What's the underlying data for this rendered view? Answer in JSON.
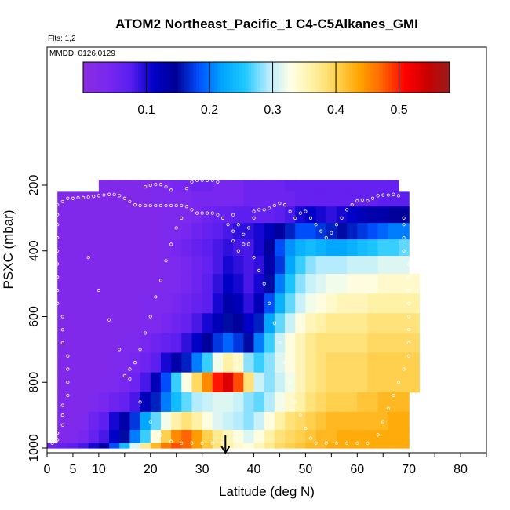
{
  "chart_data": {
    "type": "heatmap",
    "title": "ATOM2 Northeast_Pacific_1 C4-C5Alkanes_GMI",
    "annotations": [
      "Flts: 1,2",
      "MMDD: 0126,0129"
    ],
    "xlabel": "Latitude (deg N)",
    "ylabel": "PSXC (mbar)",
    "xlim": [
      0,
      85
    ],
    "ylim": [
      1000,
      100
    ],
    "y_reversed": true,
    "x_ticks": [
      0,
      5,
      10,
      15,
      20,
      25,
      30,
      35,
      40,
      45,
      50,
      55,
      60,
      65,
      70,
      75,
      80,
      85
    ],
    "x_tick_labels": [
      "0",
      "5",
      "10",
      "",
      "20",
      "",
      "30",
      "",
      "40",
      "",
      "50",
      "",
      "60",
      "",
      "70",
      "",
      "80",
      ""
    ],
    "y_ticks": [
      200,
      400,
      600,
      800,
      1000
    ],
    "y_tick_labels": [
      "200",
      "400",
      "600",
      "800",
      "1000"
    ],
    "colorbar": {
      "range": [
        0,
        0.58
      ],
      "ticks": [
        0.1,
        0.2,
        0.3,
        0.4,
        0.5
      ],
      "tick_labels": [
        "0.1",
        "0.2",
        "0.3",
        "0.4",
        "0.5"
      ],
      "colors": [
        "#8a2be2",
        "#7a28f0",
        "#5a1ef0",
        "#0000c8",
        "#000096",
        "#0050ff",
        "#00a5ff",
        "#1ec8ff",
        "#b4ebff",
        "#ffffe6",
        "#fff0a0",
        "#ffd250",
        "#ffa500",
        "#ff6400",
        "#ff0000",
        "#c80000",
        "#961e1e"
      ]
    },
    "x_grid": [
      1,
      3,
      5,
      7,
      9,
      11,
      13,
      15,
      17,
      19,
      21,
      23,
      25,
      27,
      29,
      31,
      33,
      35,
      37,
      39,
      41,
      43,
      45,
      47,
      49,
      51,
      53,
      55,
      57,
      59,
      61,
      63,
      65,
      67,
      69,
      71
    ],
    "levels": [
      {
        "p": 200,
        "v": [
          null,
          null,
          null,
          null,
          null,
          0.02,
          0.02,
          0.02,
          0.02,
          0.02,
          0.03,
          0.03,
          0.04,
          0.04,
          0.05,
          0.05,
          0.04,
          0.04,
          0.04,
          0.05,
          0.05,
          0.05,
          0.05,
          0.06,
          0.06,
          0.06,
          0.06,
          0.06,
          0.06,
          0.06,
          0.06,
          0.06,
          0.06,
          0.06,
          null,
          null
        ]
      },
      {
        "p": 240,
        "v": [
          null,
          0.02,
          0.02,
          0.02,
          0.02,
          0.02,
          0.02,
          0.02,
          0.02,
          0.02,
          0.03,
          0.03,
          0.03,
          0.03,
          0.04,
          0.04,
          0.04,
          0.04,
          0.04,
          0.05,
          0.05,
          0.05,
          0.05,
          0.05,
          0.06,
          0.06,
          0.06,
          0.06,
          0.06,
          0.06,
          0.06,
          0.06,
          0.07,
          0.07,
          0.07,
          null
        ]
      },
      {
        "p": 290,
        "v": [
          null,
          0.02,
          0.02,
          0.02,
          0.02,
          0.02,
          0.02,
          0.02,
          0.02,
          0.02,
          0.02,
          0.03,
          0.03,
          0.03,
          0.04,
          0.05,
          0.06,
          0.06,
          0.07,
          0.07,
          0.06,
          0.06,
          0.07,
          0.08,
          0.1,
          0.11,
          0.1,
          0.09,
          0.1,
          0.11,
          0.12,
          0.13,
          0.13,
          0.14,
          0.14,
          null
        ]
      },
      {
        "p": 340,
        "v": [
          null,
          0.02,
          0.02,
          0.02,
          0.02,
          0.02,
          0.02,
          0.02,
          0.02,
          0.02,
          0.02,
          0.03,
          0.03,
          0.04,
          0.05,
          0.06,
          0.07,
          0.08,
          0.09,
          0.09,
          0.1,
          0.12,
          0.14,
          0.16,
          0.18,
          0.18,
          0.17,
          0.16,
          0.15,
          0.16,
          0.17,
          0.18,
          0.19,
          0.2,
          0.2,
          null
        ]
      },
      {
        "p": 390,
        "v": [
          null,
          0.02,
          0.02,
          0.02,
          0.02,
          0.02,
          0.02,
          0.02,
          0.02,
          0.02,
          0.02,
          0.03,
          0.04,
          0.05,
          0.06,
          0.07,
          0.08,
          0.09,
          0.08,
          0.08,
          0.1,
          0.14,
          0.18,
          0.21,
          0.23,
          0.24,
          0.23,
          0.22,
          0.22,
          0.23,
          0.24,
          0.25,
          0.26,
          0.26,
          0.27,
          null
        ]
      },
      {
        "p": 440,
        "v": [
          null,
          0.02,
          0.02,
          0.02,
          0.02,
          0.02,
          0.02,
          0.02,
          0.02,
          0.02,
          0.02,
          0.03,
          0.03,
          0.04,
          0.05,
          0.06,
          0.08,
          0.1,
          0.09,
          0.08,
          0.09,
          0.13,
          0.17,
          0.22,
          0.26,
          0.28,
          0.29,
          0.29,
          0.29,
          0.3,
          0.3,
          0.3,
          0.31,
          0.31,
          0.31,
          null
        ]
      },
      {
        "p": 500,
        "v": [
          null,
          0.02,
          0.02,
          0.02,
          0.02,
          0.02,
          0.02,
          0.02,
          0.02,
          0.02,
          0.02,
          0.03,
          0.03,
          0.04,
          0.05,
          0.07,
          0.09,
          0.11,
          0.1,
          0.08,
          0.1,
          0.15,
          0.2,
          0.25,
          0.28,
          0.3,
          0.31,
          0.32,
          0.32,
          0.33,
          0.33,
          0.33,
          0.34,
          0.34,
          0.34,
          0.34
        ]
      },
      {
        "p": 560,
        "v": [
          null,
          0.02,
          0.02,
          0.02,
          0.02,
          0.02,
          0.02,
          0.02,
          0.02,
          0.03,
          0.03,
          0.03,
          0.04,
          0.05,
          0.06,
          0.07,
          0.1,
          0.13,
          0.12,
          0.09,
          0.12,
          0.18,
          0.23,
          0.27,
          0.3,
          0.32,
          0.33,
          0.34,
          0.35,
          0.35,
          0.35,
          0.36,
          0.36,
          0.36,
          0.36,
          0.36
        ]
      },
      {
        "p": 620,
        "v": [
          null,
          0.02,
          0.02,
          0.02,
          0.02,
          0.02,
          0.02,
          0.02,
          0.02,
          0.03,
          0.03,
          0.04,
          0.05,
          0.06,
          0.08,
          0.1,
          0.12,
          0.15,
          0.14,
          0.11,
          0.16,
          0.22,
          0.27,
          0.3,
          0.33,
          0.35,
          0.36,
          0.37,
          0.37,
          0.37,
          0.37,
          0.38,
          0.38,
          0.38,
          0.38,
          0.38
        ]
      },
      {
        "p": 680,
        "v": [
          null,
          0.02,
          0.02,
          0.02,
          0.02,
          0.02,
          0.02,
          0.03,
          0.03,
          0.04,
          0.05,
          0.06,
          0.07,
          0.09,
          0.11,
          0.14,
          0.17,
          0.19,
          0.17,
          0.15,
          0.2,
          0.26,
          0.3,
          0.33,
          0.35,
          0.37,
          0.38,
          0.38,
          0.38,
          0.38,
          0.38,
          0.39,
          0.39,
          0.39,
          0.39,
          0.39
        ]
      },
      {
        "p": 740,
        "v": [
          null,
          0.02,
          0.02,
          0.02,
          0.02,
          0.02,
          0.03,
          0.03,
          0.04,
          0.05,
          0.07,
          0.1,
          0.13,
          0.16,
          0.2,
          0.26,
          0.32,
          0.36,
          0.34,
          0.28,
          0.26,
          0.28,
          0.31,
          0.33,
          0.35,
          0.37,
          0.38,
          0.39,
          0.39,
          0.39,
          0.39,
          0.4,
          0.4,
          0.4,
          0.4,
          0.4
        ]
      },
      {
        "p": 800,
        "v": [
          null,
          0.02,
          0.02,
          0.02,
          0.02,
          0.03,
          0.03,
          0.04,
          0.05,
          0.08,
          0.12,
          0.18,
          0.26,
          0.33,
          0.39,
          0.45,
          0.5,
          0.53,
          0.48,
          0.38,
          0.3,
          0.28,
          0.3,
          0.32,
          0.35,
          0.37,
          0.38,
          0.39,
          0.39,
          0.39,
          0.39,
          0.4,
          0.4,
          0.4,
          0.4,
          0.4
        ]
      },
      {
        "p": 860,
        "v": [
          null,
          0.02,
          0.02,
          0.02,
          0.03,
          0.04,
          0.05,
          0.06,
          0.08,
          0.12,
          0.16,
          0.2,
          0.24,
          0.27,
          0.29,
          0.3,
          0.31,
          0.31,
          0.3,
          0.28,
          0.27,
          0.29,
          0.32,
          0.34,
          0.36,
          0.38,
          0.39,
          0.4,
          0.4,
          0.4,
          0.41,
          0.41,
          0.42,
          0.42,
          0.42,
          null
        ]
      },
      {
        "p": 920,
        "v": [
          null,
          0.02,
          0.02,
          0.03,
          0.05,
          0.07,
          0.1,
          0.13,
          0.17,
          0.22,
          0.27,
          0.32,
          0.36,
          0.38,
          0.36,
          0.33,
          0.31,
          0.3,
          0.29,
          0.28,
          0.3,
          0.33,
          0.36,
          0.38,
          0.39,
          0.4,
          0.41,
          0.42,
          0.42,
          0.42,
          0.42,
          0.42,
          0.42,
          0.43,
          0.43,
          null
        ]
      },
      {
        "p": 970,
        "v": [
          null,
          0.02,
          0.03,
          0.04,
          0.06,
          0.08,
          0.11,
          0.15,
          0.2,
          0.26,
          0.33,
          0.4,
          0.45,
          0.47,
          0.44,
          0.4,
          0.37,
          0.35,
          0.33,
          0.31,
          0.33,
          0.36,
          0.38,
          0.39,
          0.4,
          0.41,
          0.42,
          0.42,
          0.43,
          0.43,
          0.43,
          0.43,
          0.43,
          0.43,
          0.43,
          null
        ]
      },
      {
        "p": 1000,
        "v": [
          0.05,
          0.06,
          0.07,
          0.08,
          0.1,
          0.13,
          0.18,
          0.24,
          0.31,
          0.37,
          0.42,
          0.46,
          0.48,
          0.47,
          0.44,
          0.41,
          0.38,
          0.36,
          0.34,
          0.33,
          0.35,
          0.37,
          0.39,
          0.4,
          0.41,
          0.42,
          0.42,
          0.43,
          0.43,
          0.43,
          0.43,
          0.43,
          0.43,
          0.43,
          0.43,
          null
        ]
      }
    ],
    "flight_track_points": [
      [
        1,
        985
      ],
      [
        2,
        975
      ],
      [
        2,
        955
      ],
      [
        3,
        930
      ],
      [
        3,
        900
      ],
      [
        3,
        870
      ],
      [
        4,
        840
      ],
      [
        4,
        800
      ],
      [
        4,
        760
      ],
      [
        4,
        720
      ],
      [
        3,
        680
      ],
      [
        3,
        640
      ],
      [
        3,
        600
      ],
      [
        2,
        560
      ],
      [
        2,
        520
      ],
      [
        2,
        480
      ],
      [
        2,
        440
      ],
      [
        2,
        400
      ],
      [
        2,
        360
      ],
      [
        2,
        320
      ],
      [
        2,
        290
      ],
      [
        2,
        260
      ],
      [
        3,
        250
      ],
      [
        4,
        240
      ],
      [
        5,
        240
      ],
      [
        6,
        238
      ],
      [
        7,
        238
      ],
      [
        8,
        236
      ],
      [
        9,
        234
      ],
      [
        10,
        232
      ],
      [
        11,
        230
      ],
      [
        12,
        228
      ],
      [
        13,
        228
      ],
      [
        14,
        232
      ],
      [
        15,
        240
      ],
      [
        16,
        250
      ],
      [
        17,
        260
      ],
      [
        18,
        262
      ],
      [
        19,
        262
      ],
      [
        20,
        262
      ],
      [
        21,
        262
      ],
      [
        22,
        262
      ],
      [
        23,
        262
      ],
      [
        24,
        262
      ],
      [
        25,
        262
      ],
      [
        26,
        262
      ],
      [
        27,
        265
      ],
      [
        28,
        275
      ],
      [
        29,
        285
      ],
      [
        30,
        285
      ],
      [
        31,
        285
      ],
      [
        32,
        285
      ],
      [
        33,
        290
      ],
      [
        34,
        300
      ],
      [
        35,
        320
      ],
      [
        36,
        340
      ],
      [
        36,
        370
      ],
      [
        37,
        400
      ],
      [
        38,
        380
      ],
      [
        39,
        330
      ],
      [
        40,
        300
      ],
      [
        40,
        280
      ],
      [
        41,
        275
      ],
      [
        42,
        275
      ],
      [
        43,
        270
      ],
      [
        44,
        262
      ],
      [
        45,
        255
      ],
      [
        46,
        260
      ],
      [
        47,
        280
      ],
      [
        48,
        300
      ],
      [
        49,
        285
      ],
      [
        50,
        280
      ],
      [
        51,
        300
      ],
      [
        52,
        320
      ],
      [
        53,
        340
      ],
      [
        54,
        360
      ],
      [
        55,
        345
      ],
      [
        56,
        320
      ],
      [
        57,
        300
      ],
      [
        58,
        275
      ],
      [
        59,
        260
      ],
      [
        60,
        248
      ],
      [
        61,
        245
      ],
      [
        62,
        248
      ],
      [
        63,
        240
      ],
      [
        64,
        232
      ],
      [
        65,
        230
      ],
      [
        66,
        230
      ],
      [
        67,
        228
      ],
      [
        68,
        232
      ],
      [
        19,
        205
      ],
      [
        20,
        200
      ],
      [
        21,
        198
      ],
      [
        22,
        198
      ],
      [
        23,
        205
      ],
      [
        24,
        215
      ],
      [
        27,
        210
      ],
      [
        28,
        190
      ],
      [
        29,
        185
      ],
      [
        30,
        185
      ],
      [
        31,
        185
      ],
      [
        32,
        185
      ],
      [
        33,
        190
      ],
      [
        8,
        420
      ],
      [
        10,
        520
      ],
      [
        12,
        610
      ],
      [
        14,
        700
      ],
      [
        16,
        790
      ],
      [
        18,
        860
      ],
      [
        20,
        920
      ],
      [
        22,
        960
      ],
      [
        24,
        980
      ],
      [
        26,
        985
      ],
      [
        28,
        985
      ],
      [
        30,
        985
      ],
      [
        32,
        985
      ],
      [
        34,
        985
      ],
      [
        26,
        300
      ],
      [
        25,
        330
      ],
      [
        24,
        380
      ],
      [
        23,
        430
      ],
      [
        22,
        490
      ],
      [
        21,
        540
      ],
      [
        20,
        600
      ],
      [
        19,
        650
      ],
      [
        18,
        700
      ],
      [
        17,
        740
      ],
      [
        16,
        760
      ],
      [
        15,
        780
      ],
      [
        36,
        290
      ],
      [
        37,
        320
      ],
      [
        38,
        350
      ],
      [
        39,
        380
      ],
      [
        40,
        420
      ],
      [
        41,
        460
      ],
      [
        42,
        500
      ],
      [
        43,
        560
      ],
      [
        44,
        620
      ],
      [
        45,
        680
      ],
      [
        46,
        740
      ],
      [
        47,
        800
      ],
      [
        48,
        860
      ],
      [
        49,
        900
      ],
      [
        50,
        940
      ],
      [
        51,
        970
      ],
      [
        52,
        985
      ],
      [
        54,
        985
      ],
      [
        56,
        985
      ],
      [
        58,
        985
      ],
      [
        60,
        985
      ],
      [
        62,
        985
      ],
      [
        64,
        960
      ],
      [
        65,
        920
      ],
      [
        66,
        880
      ],
      [
        67,
        840
      ],
      [
        68,
        800
      ],
      [
        69,
        760
      ],
      [
        70,
        720
      ],
      [
        70,
        680
      ],
      [
        70,
        640
      ],
      [
        70,
        600
      ],
      [
        70,
        560
      ],
      [
        70,
        520
      ],
      [
        70,
        480
      ],
      [
        70,
        440
      ],
      [
        69,
        400
      ],
      [
        69,
        360
      ],
      [
        69,
        320
      ],
      [
        69,
        300
      ]
    ],
    "arrow_marker_lat": 34.5
  }
}
